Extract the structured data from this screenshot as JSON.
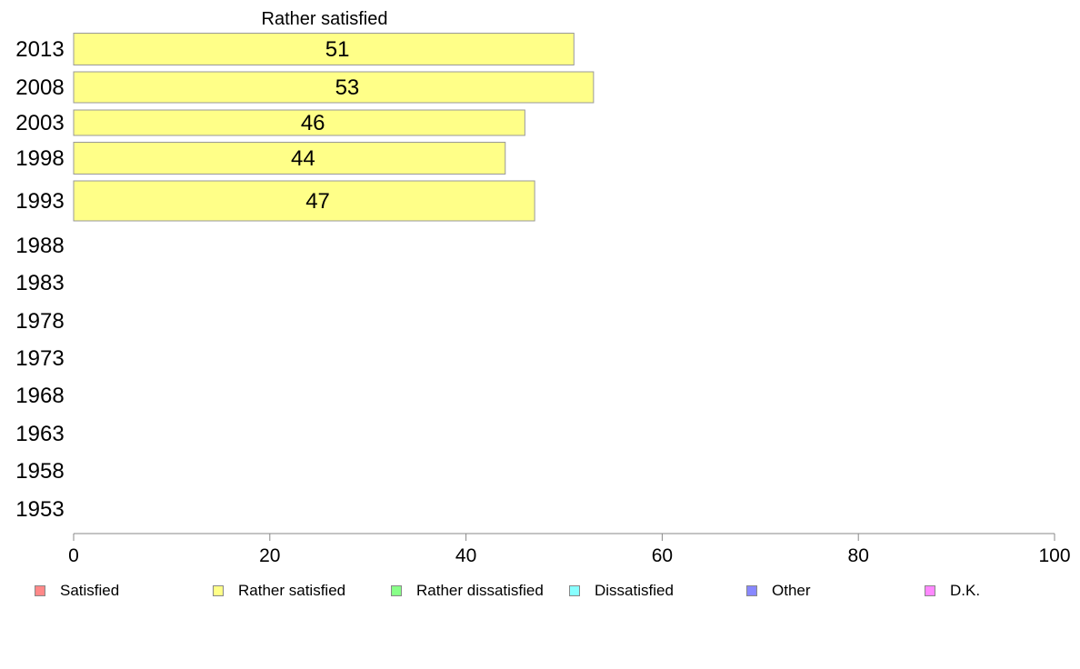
{
  "chart_data": {
    "type": "bar",
    "orientation": "horizontal",
    "title": "Rather satisfied",
    "categories": [
      "2013",
      "2008",
      "2003",
      "1998",
      "1993",
      "1988",
      "1983",
      "1978",
      "1973",
      "1968",
      "1963",
      "1958",
      "1953"
    ],
    "series": [
      {
        "name": "Rather satisfied",
        "color": "#ffff88",
        "values": [
          51,
          53,
          46,
          44,
          47,
          null,
          null,
          null,
          null,
          null,
          null,
          null,
          null
        ]
      }
    ],
    "xlim": [
      0,
      100
    ],
    "xticks": [
      0,
      20,
      40,
      60,
      80,
      100
    ],
    "xlabel": "",
    "ylabel": "",
    "grid": false,
    "legend_placement": "bottom",
    "legend": [
      {
        "label": "Satisfied",
        "color": "#ff8888"
      },
      {
        "label": "Rather satisfied",
        "color": "#ffff88"
      },
      {
        "label": "Rather dissatisfied",
        "color": "#88ff88"
      },
      {
        "label": "Dissatisfied",
        "color": "#88ffff"
      },
      {
        "label": "Other",
        "color": "#8888ff"
      },
      {
        "label": "D.K.",
        "color": "#ff88ff"
      }
    ]
  }
}
